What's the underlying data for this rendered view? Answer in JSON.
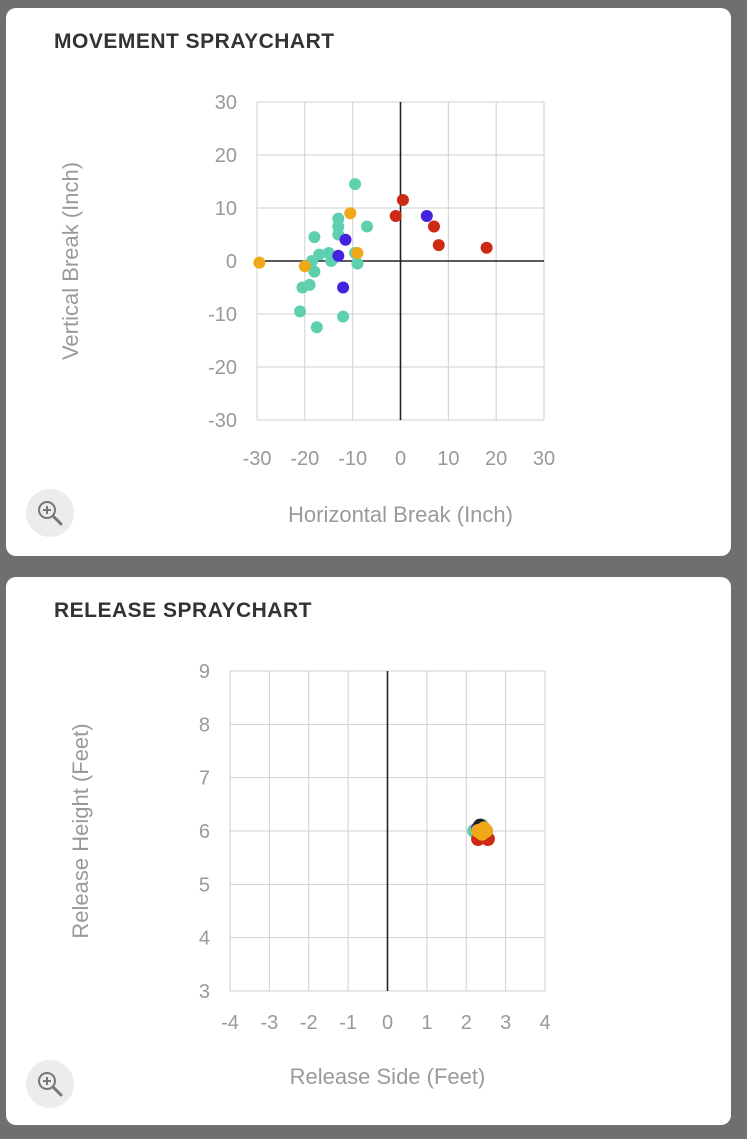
{
  "charts": [
    {
      "title": "MOVEMENT SPRAYCHART",
      "zoom_icon": "zoom-in-icon",
      "chart_data": {
        "type": "scatter",
        "title": "MOVEMENT SPRAYCHART",
        "xlabel": "Horizontal Break (Inch)",
        "ylabel": "Vertical Break (Inch)",
        "xlim": [
          -30,
          30
        ],
        "ylim": [
          -30,
          30
        ],
        "xticks": [
          -30,
          -20,
          -10,
          0,
          10,
          20,
          30
        ],
        "yticks": [
          30,
          20,
          10,
          0,
          -10,
          -20,
          -30
        ],
        "grid": true,
        "series": [
          {
            "color": "#5ed0b0",
            "points": [
              [
                -9.5,
                14.5
              ],
              [
                -13,
                8
              ],
              [
                -13,
                6.5
              ],
              [
                -13,
                5
              ],
              [
                -7,
                6.5
              ],
              [
                -18,
                4.5
              ],
              [
                -17,
                1.2
              ],
              [
                -15,
                1.5
              ],
              [
                -14,
                0.5
              ],
              [
                -14.5,
                0
              ],
              [
                -9,
                -0.5
              ],
              [
                -9.5,
                1.5
              ],
              [
                -18,
                -2
              ],
              [
                -19,
                -4.5
              ],
              [
                -20.5,
                -5
              ],
              [
                -21,
                -9.5
              ],
              [
                -12,
                -10.5
              ],
              [
                -17.5,
                -12.5
              ],
              [
                -18.5,
                0
              ]
            ]
          },
          {
            "color": "#f0a818",
            "points": [
              [
                -29.5,
                -0.3
              ],
              [
                -20,
                -1
              ],
              [
                -10.5,
                9
              ],
              [
                -9,
                1.5
              ]
            ]
          },
          {
            "color": "#4422e0",
            "points": [
              [
                -11.5,
                4
              ],
              [
                -13,
                1
              ],
              [
                -12,
                -5
              ],
              [
                5.5,
                8.5
              ]
            ]
          },
          {
            "color": "#cc2a14",
            "points": [
              [
                0.5,
                11.5
              ],
              [
                -1,
                8.5
              ],
              [
                7,
                6.5
              ],
              [
                8,
                3
              ],
              [
                18,
                2.5
              ]
            ]
          }
        ]
      }
    },
    {
      "title": "RELEASE SPRAYCHART",
      "zoom_icon": "zoom-in-icon",
      "chart_data": {
        "type": "scatter",
        "title": "RELEASE SPRAYCHART",
        "xlabel": "Release Side (Feet)",
        "ylabel": "Release Height (Feet)",
        "xlim": [
          -4,
          4
        ],
        "ylim": [
          3,
          9
        ],
        "xticks": [
          -4,
          -3,
          -2,
          -1,
          0,
          1,
          2,
          3,
          4
        ],
        "yticks": [
          9,
          8,
          7,
          6,
          5,
          4,
          3
        ],
        "grid": true,
        "series": [
          {
            "color": "#5ed0b0",
            "points": [
              [
                2.2,
                6.0
              ],
              [
                2.3,
                6.05
              ],
              [
                2.35,
                5.95
              ],
              [
                2.4,
                6.1
              ]
            ]
          },
          {
            "color": "#cc2a14",
            "points": [
              [
                2.3,
                5.85
              ],
              [
                2.55,
                5.85
              ],
              [
                2.45,
                5.9
              ]
            ]
          },
          {
            "color": "#4422e0",
            "points": [
              [
                2.3,
                6.05
              ],
              [
                2.5,
                6.0
              ]
            ]
          },
          {
            "color": "#222222",
            "points": [
              [
                2.35,
                6.1
              ]
            ]
          },
          {
            "color": "#f0a818",
            "points": [
              [
                2.3,
                6.0
              ],
              [
                2.45,
                6.05
              ],
              [
                2.5,
                6.0
              ],
              [
                2.4,
                5.95
              ]
            ]
          }
        ]
      }
    }
  ]
}
